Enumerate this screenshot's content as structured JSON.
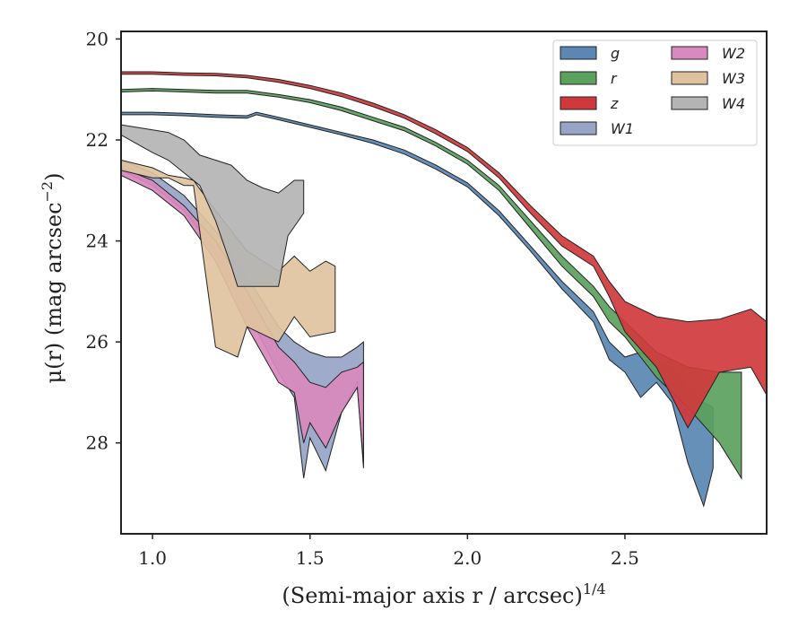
{
  "chart_data": {
    "type": "area",
    "xlabel": "(Semi-major axis r / arcsec)",
    "xlabel_sup": "1/4",
    "ylabel": "μ(r) (mag arcsec",
    "ylabel_sup": "−2",
    "ylabel_end": ")",
    "xlim": [
      0.9,
      2.95
    ],
    "ylim": [
      29.8,
      19.85
    ],
    "y_inverted": true,
    "xticks": [
      1.0,
      1.5,
      2.0,
      2.5
    ],
    "xtick_labels": [
      "1.0",
      "1.5",
      "2.0",
      "2.5"
    ],
    "yticks": [
      20,
      22,
      24,
      26,
      28
    ],
    "ytick_labels": [
      "20",
      "22",
      "24",
      "26",
      "28"
    ],
    "grid": false,
    "legend_position": "top-right",
    "legend_columns": 2,
    "series": [
      {
        "name": "g",
        "color": "#5a87b3",
        "upper": [
          [
            0.9,
            21.45
          ],
          [
            1.0,
            21.45
          ],
          [
            1.1,
            21.47
          ],
          [
            1.2,
            21.5
          ],
          [
            1.3,
            21.52
          ],
          [
            1.33,
            21.45
          ],
          [
            1.4,
            21.55
          ],
          [
            1.5,
            21.7
          ],
          [
            1.6,
            21.85
          ],
          [
            1.7,
            22.0
          ],
          [
            1.8,
            22.2
          ],
          [
            1.9,
            22.5
          ],
          [
            2.0,
            22.85
          ],
          [
            2.1,
            23.4
          ],
          [
            2.2,
            24.1
          ],
          [
            2.3,
            24.8
          ],
          [
            2.4,
            25.4
          ],
          [
            2.45,
            26.0
          ],
          [
            2.5,
            26.3
          ],
          [
            2.55,
            26.2
          ],
          [
            2.6,
            26.4
          ],
          [
            2.65,
            26.5
          ],
          [
            2.7,
            26.9
          ],
          [
            2.75,
            27.2
          ],
          [
            2.78,
            27.3
          ]
        ],
        "lower": [
          [
            0.9,
            21.5
          ],
          [
            1.0,
            21.5
          ],
          [
            1.1,
            21.52
          ],
          [
            1.2,
            21.55
          ],
          [
            1.3,
            21.57
          ],
          [
            1.33,
            21.5
          ],
          [
            1.4,
            21.6
          ],
          [
            1.5,
            21.75
          ],
          [
            1.6,
            21.9
          ],
          [
            1.7,
            22.07
          ],
          [
            1.8,
            22.28
          ],
          [
            1.9,
            22.58
          ],
          [
            2.0,
            22.93
          ],
          [
            2.1,
            23.5
          ],
          [
            2.2,
            24.2
          ],
          [
            2.3,
            24.95
          ],
          [
            2.4,
            25.6
          ],
          [
            2.45,
            26.35
          ],
          [
            2.5,
            26.6
          ],
          [
            2.55,
            27.1
          ],
          [
            2.6,
            26.8
          ],
          [
            2.65,
            27.2
          ],
          [
            2.7,
            28.4
          ],
          [
            2.75,
            29.25
          ],
          [
            2.78,
            28.5
          ]
        ]
      },
      {
        "name": "r",
        "color": "#5ba15d",
        "upper": [
          [
            0.9,
            21.0
          ],
          [
            1.0,
            20.98
          ],
          [
            1.1,
            21.0
          ],
          [
            1.2,
            21.02
          ],
          [
            1.3,
            21.02
          ],
          [
            1.4,
            21.1
          ],
          [
            1.5,
            21.2
          ],
          [
            1.6,
            21.35
          ],
          [
            1.7,
            21.55
          ],
          [
            1.8,
            21.75
          ],
          [
            1.9,
            22.05
          ],
          [
            2.0,
            22.4
          ],
          [
            2.1,
            22.9
          ],
          [
            2.2,
            23.6
          ],
          [
            2.3,
            24.3
          ],
          [
            2.4,
            24.9
          ],
          [
            2.45,
            25.3
          ],
          [
            2.5,
            25.6
          ],
          [
            2.55,
            25.9
          ],
          [
            2.6,
            26.2
          ],
          [
            2.7,
            26.5
          ],
          [
            2.8,
            26.6
          ],
          [
            2.87,
            26.6
          ]
        ],
        "lower": [
          [
            0.9,
            21.05
          ],
          [
            1.0,
            21.03
          ],
          [
            1.1,
            21.05
          ],
          [
            1.2,
            21.07
          ],
          [
            1.3,
            21.07
          ],
          [
            1.4,
            21.15
          ],
          [
            1.5,
            21.26
          ],
          [
            1.6,
            21.42
          ],
          [
            1.7,
            21.62
          ],
          [
            1.8,
            21.82
          ],
          [
            1.9,
            22.12
          ],
          [
            2.0,
            22.48
          ],
          [
            2.1,
            23.0
          ],
          [
            2.2,
            23.75
          ],
          [
            2.3,
            24.5
          ],
          [
            2.4,
            25.1
          ],
          [
            2.45,
            25.6
          ],
          [
            2.5,
            25.9
          ],
          [
            2.55,
            26.3
          ],
          [
            2.6,
            26.7
          ],
          [
            2.7,
            27.3
          ],
          [
            2.8,
            28.0
          ],
          [
            2.87,
            28.7
          ]
        ]
      },
      {
        "name": "z",
        "color": "#d0393c",
        "upper": [
          [
            0.9,
            20.65
          ],
          [
            1.0,
            20.65
          ],
          [
            1.1,
            20.67
          ],
          [
            1.2,
            20.68
          ],
          [
            1.3,
            20.72
          ],
          [
            1.4,
            20.8
          ],
          [
            1.5,
            20.92
          ],
          [
            1.6,
            21.07
          ],
          [
            1.7,
            21.27
          ],
          [
            1.8,
            21.5
          ],
          [
            1.9,
            21.8
          ],
          [
            2.0,
            22.15
          ],
          [
            2.1,
            22.65
          ],
          [
            2.2,
            23.3
          ],
          [
            2.3,
            23.9
          ],
          [
            2.4,
            24.3
          ],
          [
            2.45,
            24.8
          ],
          [
            2.5,
            25.2
          ],
          [
            2.6,
            25.5
          ],
          [
            2.7,
            25.6
          ],
          [
            2.8,
            25.55
          ],
          [
            2.9,
            25.35
          ],
          [
            2.95,
            25.6
          ]
        ],
        "lower": [
          [
            0.9,
            20.7
          ],
          [
            1.0,
            20.7
          ],
          [
            1.1,
            20.72
          ],
          [
            1.2,
            20.73
          ],
          [
            1.3,
            20.77
          ],
          [
            1.4,
            20.86
          ],
          [
            1.5,
            20.98
          ],
          [
            1.6,
            21.14
          ],
          [
            1.7,
            21.34
          ],
          [
            1.8,
            21.57
          ],
          [
            1.9,
            21.88
          ],
          [
            2.0,
            22.23
          ],
          [
            2.1,
            22.75
          ],
          [
            2.2,
            23.45
          ],
          [
            2.3,
            24.1
          ],
          [
            2.4,
            24.5
          ],
          [
            2.45,
            25.1
          ],
          [
            2.5,
            25.8
          ],
          [
            2.6,
            26.5
          ],
          [
            2.7,
            27.7
          ],
          [
            2.8,
            26.6
          ],
          [
            2.9,
            26.5
          ],
          [
            2.95,
            27.05
          ]
        ]
      },
      {
        "name": "W1",
        "color": "#97a4c6",
        "upper": [
          [
            0.9,
            22.4
          ],
          [
            1.0,
            22.65
          ],
          [
            1.1,
            23.1
          ],
          [
            1.2,
            23.8
          ],
          [
            1.3,
            24.7
          ],
          [
            1.4,
            25.7
          ],
          [
            1.45,
            26.0
          ],
          [
            1.5,
            26.2
          ],
          [
            1.55,
            26.3
          ],
          [
            1.6,
            26.3
          ],
          [
            1.65,
            26.1
          ],
          [
            1.67,
            26.0
          ]
        ],
        "lower": [
          [
            0.9,
            22.6
          ],
          [
            1.0,
            22.9
          ],
          [
            1.1,
            23.4
          ],
          [
            1.2,
            24.2
          ],
          [
            1.3,
            25.4
          ],
          [
            1.4,
            26.6
          ],
          [
            1.45,
            27.1
          ],
          [
            1.48,
            28.7
          ],
          [
            1.5,
            27.9
          ],
          [
            1.55,
            28.55
          ],
          [
            1.6,
            27.4
          ],
          [
            1.65,
            26.8
          ],
          [
            1.67,
            28.5
          ]
        ]
      },
      {
        "name": "W2",
        "color": "#d889bd",
        "upper": [
          [
            0.9,
            22.55
          ],
          [
            1.0,
            22.8
          ],
          [
            1.1,
            23.3
          ],
          [
            1.2,
            24.0
          ],
          [
            1.3,
            25.0
          ],
          [
            1.4,
            26.1
          ],
          [
            1.45,
            26.4
          ],
          [
            1.5,
            26.8
          ],
          [
            1.55,
            26.9
          ],
          [
            1.6,
            26.6
          ],
          [
            1.65,
            26.5
          ],
          [
            1.67,
            26.4
          ]
        ],
        "lower": [
          [
            0.9,
            22.7
          ],
          [
            1.0,
            23.0
          ],
          [
            1.1,
            23.5
          ],
          [
            1.2,
            24.4
          ],
          [
            1.3,
            25.7
          ],
          [
            1.4,
            26.8
          ],
          [
            1.45,
            27.0
          ],
          [
            1.48,
            28.0
          ],
          [
            1.5,
            27.6
          ],
          [
            1.55,
            28.1
          ],
          [
            1.6,
            27.4
          ],
          [
            1.65,
            26.9
          ],
          [
            1.67,
            28.4
          ]
        ]
      },
      {
        "name": "W3",
        "color": "#dfc39e",
        "upper": [
          [
            0.9,
            22.4
          ],
          [
            1.0,
            22.55
          ],
          [
            1.05,
            22.7
          ],
          [
            1.1,
            22.75
          ],
          [
            1.13,
            22.8
          ],
          [
            1.2,
            23.4
          ],
          [
            1.3,
            24.2
          ],
          [
            1.4,
            24.6
          ],
          [
            1.45,
            24.3
          ],
          [
            1.5,
            24.6
          ],
          [
            1.55,
            24.4
          ],
          [
            1.58,
            24.5
          ]
        ],
        "lower": [
          [
            0.9,
            22.6
          ],
          [
            1.0,
            22.75
          ],
          [
            1.05,
            22.75
          ],
          [
            1.1,
            22.9
          ],
          [
            1.13,
            22.9
          ],
          [
            1.2,
            26.1
          ],
          [
            1.27,
            26.3
          ],
          [
            1.3,
            25.7
          ],
          [
            1.4,
            26.0
          ],
          [
            1.45,
            25.5
          ],
          [
            1.5,
            25.9
          ],
          [
            1.58,
            25.8
          ]
        ]
      },
      {
        "name": "W4",
        "color": "#b4b4b4",
        "upper": [
          [
            0.9,
            21.7
          ],
          [
            1.0,
            21.8
          ],
          [
            1.05,
            21.85
          ],
          [
            1.1,
            22.0
          ],
          [
            1.15,
            22.3
          ],
          [
            1.2,
            22.4
          ],
          [
            1.25,
            22.5
          ],
          [
            1.3,
            22.8
          ],
          [
            1.35,
            22.95
          ],
          [
            1.4,
            23.05
          ],
          [
            1.45,
            22.8
          ],
          [
            1.48,
            22.8
          ]
        ],
        "lower": [
          [
            0.9,
            21.9
          ],
          [
            1.0,
            22.25
          ],
          [
            1.05,
            22.4
          ],
          [
            1.1,
            22.65
          ],
          [
            1.15,
            22.9
          ],
          [
            1.2,
            23.6
          ],
          [
            1.25,
            24.5
          ],
          [
            1.27,
            24.9
          ],
          [
            1.3,
            24.9
          ],
          [
            1.35,
            24.9
          ],
          [
            1.4,
            24.9
          ],
          [
            1.43,
            23.9
          ],
          [
            1.48,
            23.45
          ]
        ]
      }
    ]
  }
}
